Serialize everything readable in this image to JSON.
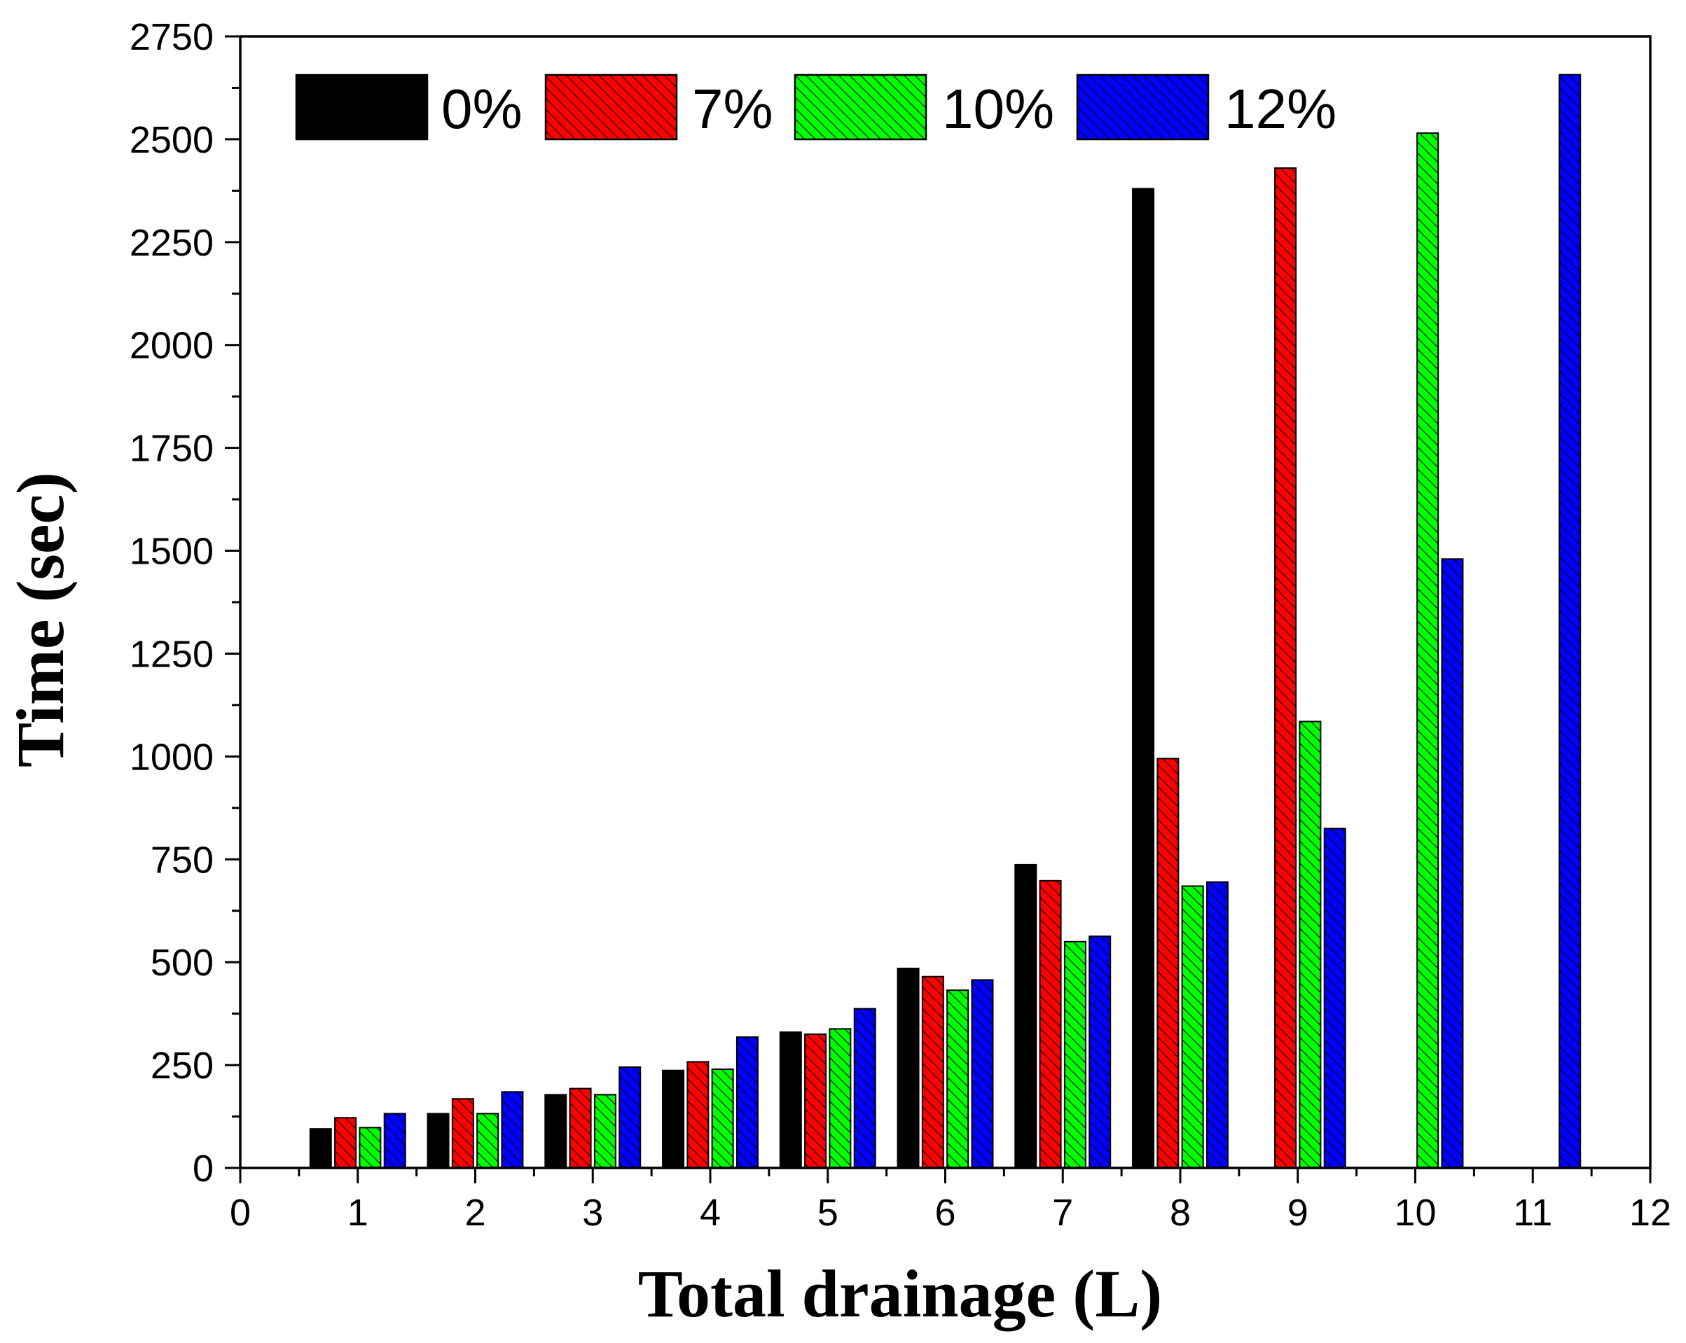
{
  "chart_data": {
    "type": "bar",
    "title": "",
    "xlabel": "Total drainage (L)",
    "ylabel": "Time (sec)",
    "xlim": [
      0,
      12
    ],
    "ylim": [
      0,
      2750
    ],
    "xticks": [
      "0",
      "1",
      "2",
      "3",
      "4",
      "5",
      "6",
      "7",
      "8",
      "9",
      "10",
      "11",
      "12"
    ],
    "yticks": [
      "0",
      "250",
      "500",
      "750",
      "1000",
      "1250",
      "1500",
      "1750",
      "2000",
      "2250",
      "2500",
      "2750"
    ],
    "grid": false,
    "legend_position": "top",
    "categories": [
      1,
      2,
      3,
      4,
      5,
      6,
      7,
      8,
      9,
      10,
      11
    ],
    "series": [
      {
        "name": "0%",
        "color": "#000000",
        "hatch": false,
        "values": [
          95,
          132,
          178,
          237,
          330,
          485,
          737,
          2380,
          null,
          null,
          null
        ]
      },
      {
        "name": "7%",
        "color": "#ff0000",
        "hatch": true,
        "values": [
          122,
          168,
          193,
          258,
          325,
          465,
          698,
          995,
          2430,
          null,
          null
        ]
      },
      {
        "name": "10%",
        "color": "#00ff00",
        "hatch": true,
        "values": [
          98,
          132,
          178,
          240,
          338,
          432,
          550,
          685,
          1085,
          2515,
          null
        ]
      },
      {
        "name": "12%",
        "color": "#0000ff",
        "hatch": true,
        "values": [
          132,
          185,
          245,
          318,
          387,
          457,
          563,
          695,
          825,
          1480,
          2657
        ]
      }
    ]
  }
}
